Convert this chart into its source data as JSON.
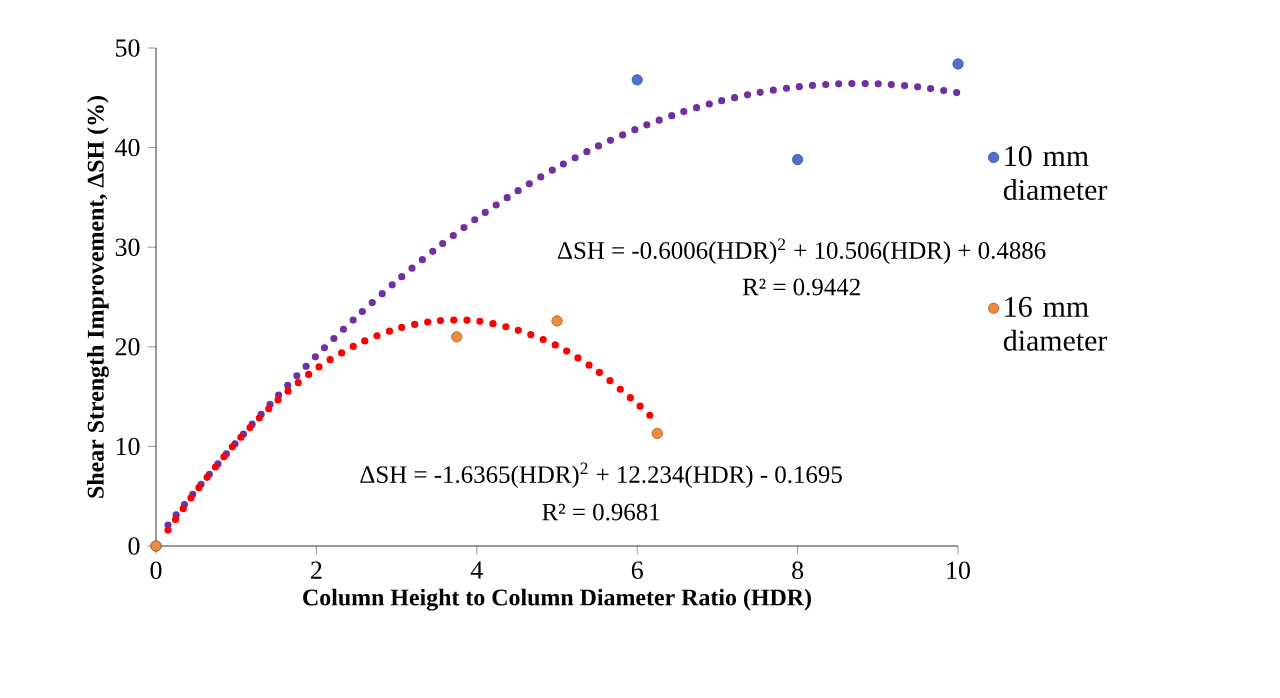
{
  "chart_data": {
    "type": "scatter",
    "xlabel": "Column Height to Column Diameter Ratio (HDR)",
    "ylabel": "Shear Strength Improvement, ΔSH (%)",
    "xlim": [
      0,
      10
    ],
    "ylim": [
      0,
      50
    ],
    "xticks": [
      0,
      2,
      4,
      6,
      8,
      10
    ],
    "yticks": [
      0,
      10,
      20,
      30,
      40,
      50
    ],
    "grid": false,
    "legend": "right",
    "annotations": [
      "ΔSH = -0.6006(HDR)$^{2}$ + 10.506(HDR) + 0.4886",
      "R² = 0.9442",
      "ΔSH = -1.6365(HDR)$^{2}$ + 12.234(HDR) - 0.1695",
      "R² = 0.9681"
    ],
    "series": [
      {
        "type": "line",
        "marker": "none",
        "line_style": "dotted",
        "color": "#7030a0",
        "x": [
          0.15,
          0.5,
          1,
          1.5,
          2,
          2.5,
          3,
          3.5,
          4,
          4.5,
          5,
          5.5,
          6,
          6.5,
          7,
          7.5,
          8,
          8.5,
          9,
          9.5,
          10
        ],
        "values": [
          2.1,
          5.6,
          10.4,
          14.9,
          19.1,
          23.0,
          26.6,
          29.9,
          32.9,
          35.6,
          38.0,
          40.1,
          41.9,
          43.4,
          44.6,
          45.5,
          46.1,
          46.4,
          46.4,
          46.1,
          45.5
        ]
      },
      {
        "type": "line",
        "marker": "none",
        "line_style": "dotted",
        "color": "#ff0000",
        "x": [
          0.15,
          0.5,
          1,
          1.5,
          2,
          2.5,
          3,
          3.5,
          4,
          4.5,
          5,
          5.5,
          6,
          6.25
        ],
        "values": [
          1.6,
          5.5,
          10.4,
          14.5,
          17.8,
          20.2,
          21.8,
          22.6,
          22.6,
          21.7,
          20.1,
          17.6,
          14.3,
          12.4
        ]
      },
      {
        "name": "10 mm diameter",
        "marker": "circle",
        "color": "#5070d0",
        "x": [
          0,
          6,
          8,
          10
        ],
        "values": [
          0,
          46.8,
          38.8,
          48.4
        ]
      },
      {
        "name": "16 mm diameter",
        "marker": "circle",
        "color": "#f08a3c",
        "x": [
          0,
          3.75,
          5,
          6.25
        ],
        "values": [
          0,
          21.0,
          22.6,
          11.3
        ]
      }
    ]
  }
}
